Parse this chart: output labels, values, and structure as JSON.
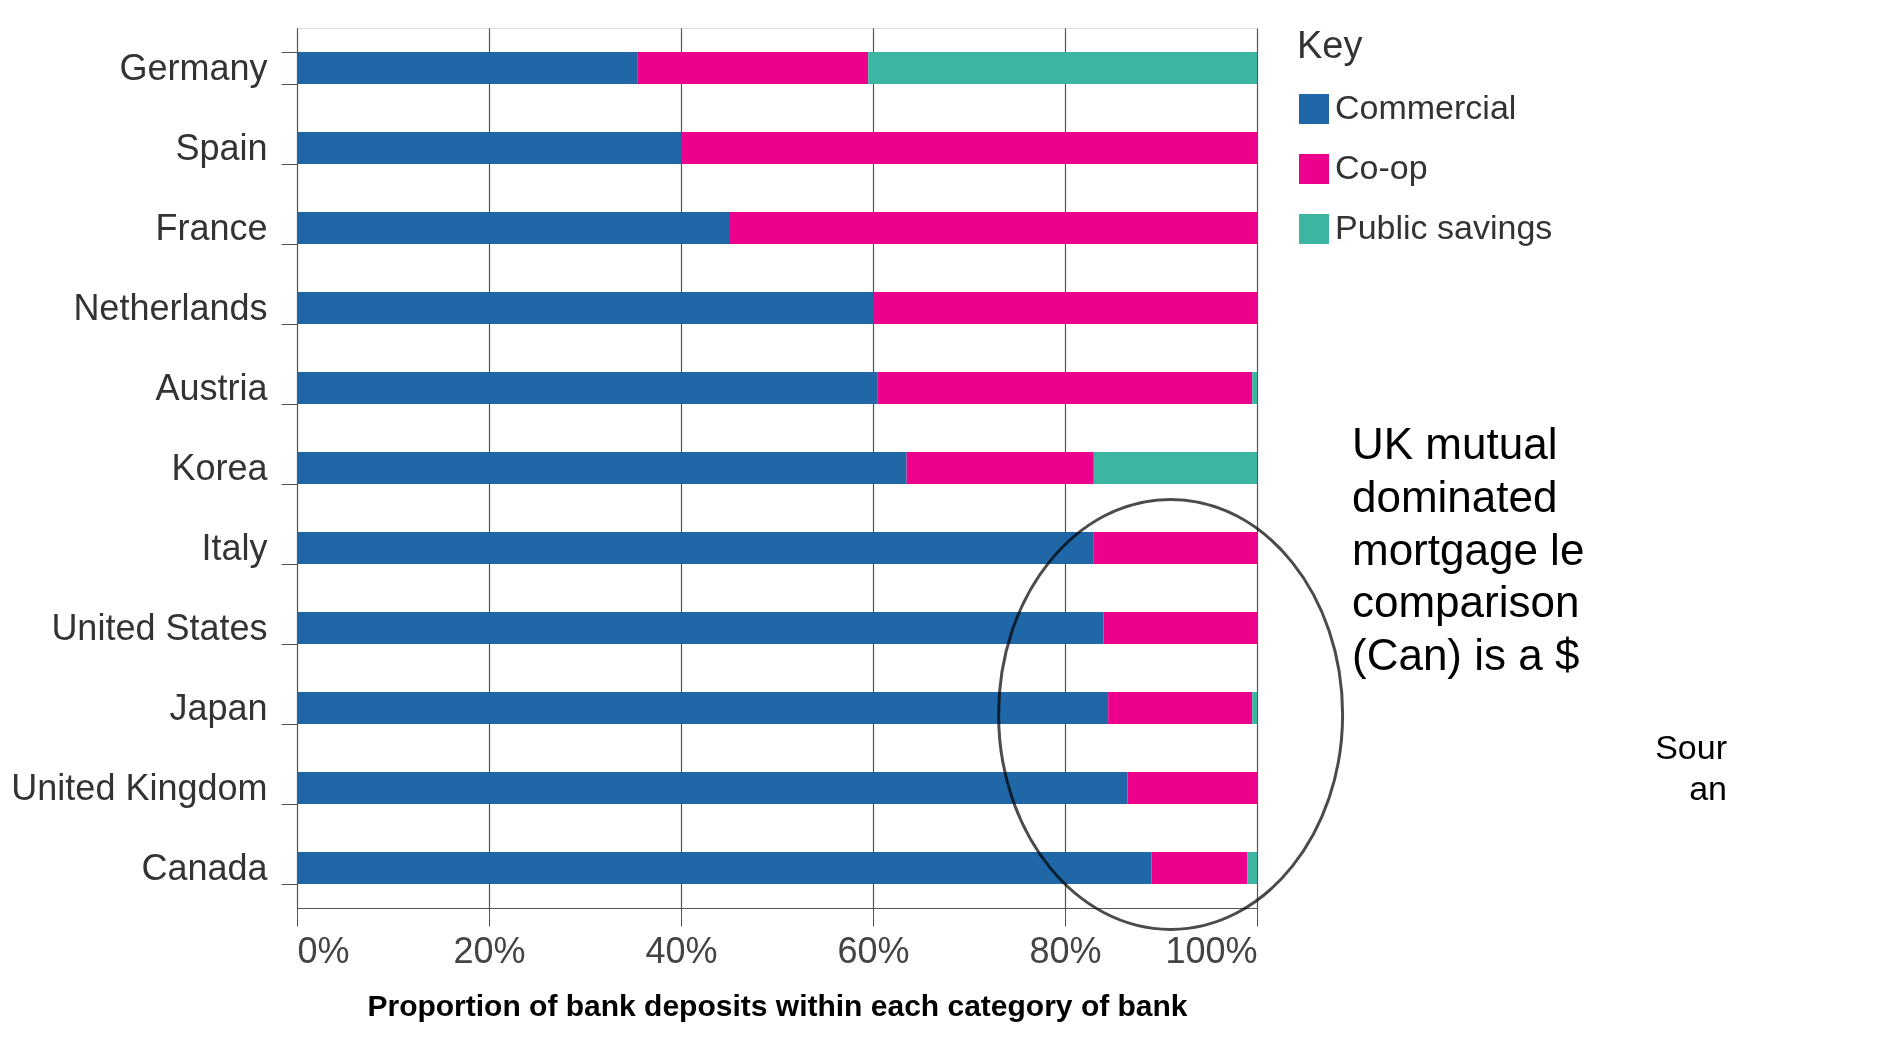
{
  "chart_data": {
    "type": "bar",
    "orientation": "horizontal",
    "stacked": true,
    "xlabel": "Proportion of bank deposits within each category of bank",
    "legend_title": "Key",
    "legend": "right",
    "grid": "x",
    "categories": [
      "Germany",
      "Spain",
      "France",
      "Netherlands",
      "Austria",
      "Korea",
      "Italy",
      "United States",
      "Japan",
      "United Kingdom",
      "Canada"
    ],
    "xlim": [
      0,
      100
    ],
    "xticks": [
      {
        "value": 0,
        "label": "0%"
      },
      {
        "value": 20,
        "label": "20%"
      },
      {
        "value": 40,
        "label": "40%"
      },
      {
        "value": 60,
        "label": "60%"
      },
      {
        "value": 80,
        "label": "80%"
      },
      {
        "value": 100,
        "label": "100%"
      }
    ],
    "series": [
      {
        "name": "Commercial",
        "color": "#1f67a6",
        "values": [
          35.5,
          40,
          45,
          60,
          60.5,
          63.5,
          83,
          84,
          84.5,
          86.5,
          89
        ]
      },
      {
        "name": "Co-op",
        "color": "#ec008c",
        "values": [
          24,
          60,
          55,
          40,
          39,
          19.5,
          17,
          16,
          15,
          13.5,
          10
        ]
      },
      {
        "name": "Public savings",
        "color": "#3cb6a2",
        "values": [
          40.5,
          null,
          null,
          null,
          0.5,
          17,
          null,
          null,
          0.5,
          null,
          1
        ]
      }
    ],
    "annotations": [
      "UK mutual\ndominated\nmortgage le\ncomparison\n(Can) is a $",
      "Sour\nan"
    ]
  }
}
